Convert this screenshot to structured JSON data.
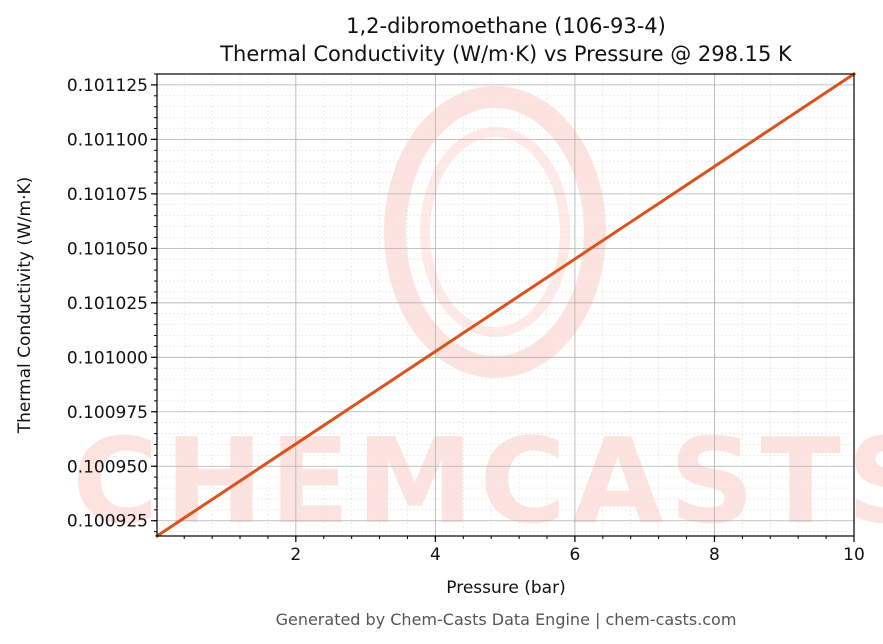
{
  "chart_data": {
    "type": "line",
    "title": "1,2-dibromoethane (106-93-4)",
    "subtitle": "Thermal Conductivity (W/m·K) vs Pressure @ 298.15 K",
    "xlabel": "Pressure (bar)",
    "ylabel": "Thermal Conductivity (W/m·K)",
    "xlim": [
      0.01,
      10
    ],
    "ylim": [
      0.100918,
      0.10113
    ],
    "x_ticks": [
      2,
      4,
      6,
      8,
      10
    ],
    "x_tick_labels": [
      "2",
      "4",
      "6",
      "8",
      "10"
    ],
    "y_ticks": [
      0.100925,
      0.10095,
      0.100975,
      0.101,
      0.101025,
      0.10105,
      0.101075,
      0.1011,
      0.101125
    ],
    "y_tick_labels": [
      "0.100925",
      "0.100950",
      "0.100975",
      "0.101000",
      "0.101025",
      "0.101050",
      "0.101075",
      "0.101100",
      "0.101125"
    ],
    "grid": true,
    "legend": "none",
    "series": [
      {
        "color": "#d9531e",
        "x": [
          0.01,
          10
        ],
        "y": [
          0.100918,
          0.10113
        ]
      }
    ]
  },
  "footer": "Generated by Chem-Casts Data Engine | chem-casts.com",
  "watermark": "CHEMCASTS",
  "colors": {
    "line": "#d9531e",
    "watermark": "#fde3df",
    "grid_major": "#b0b0b0",
    "grid_minor": "#e2e2e2"
  }
}
